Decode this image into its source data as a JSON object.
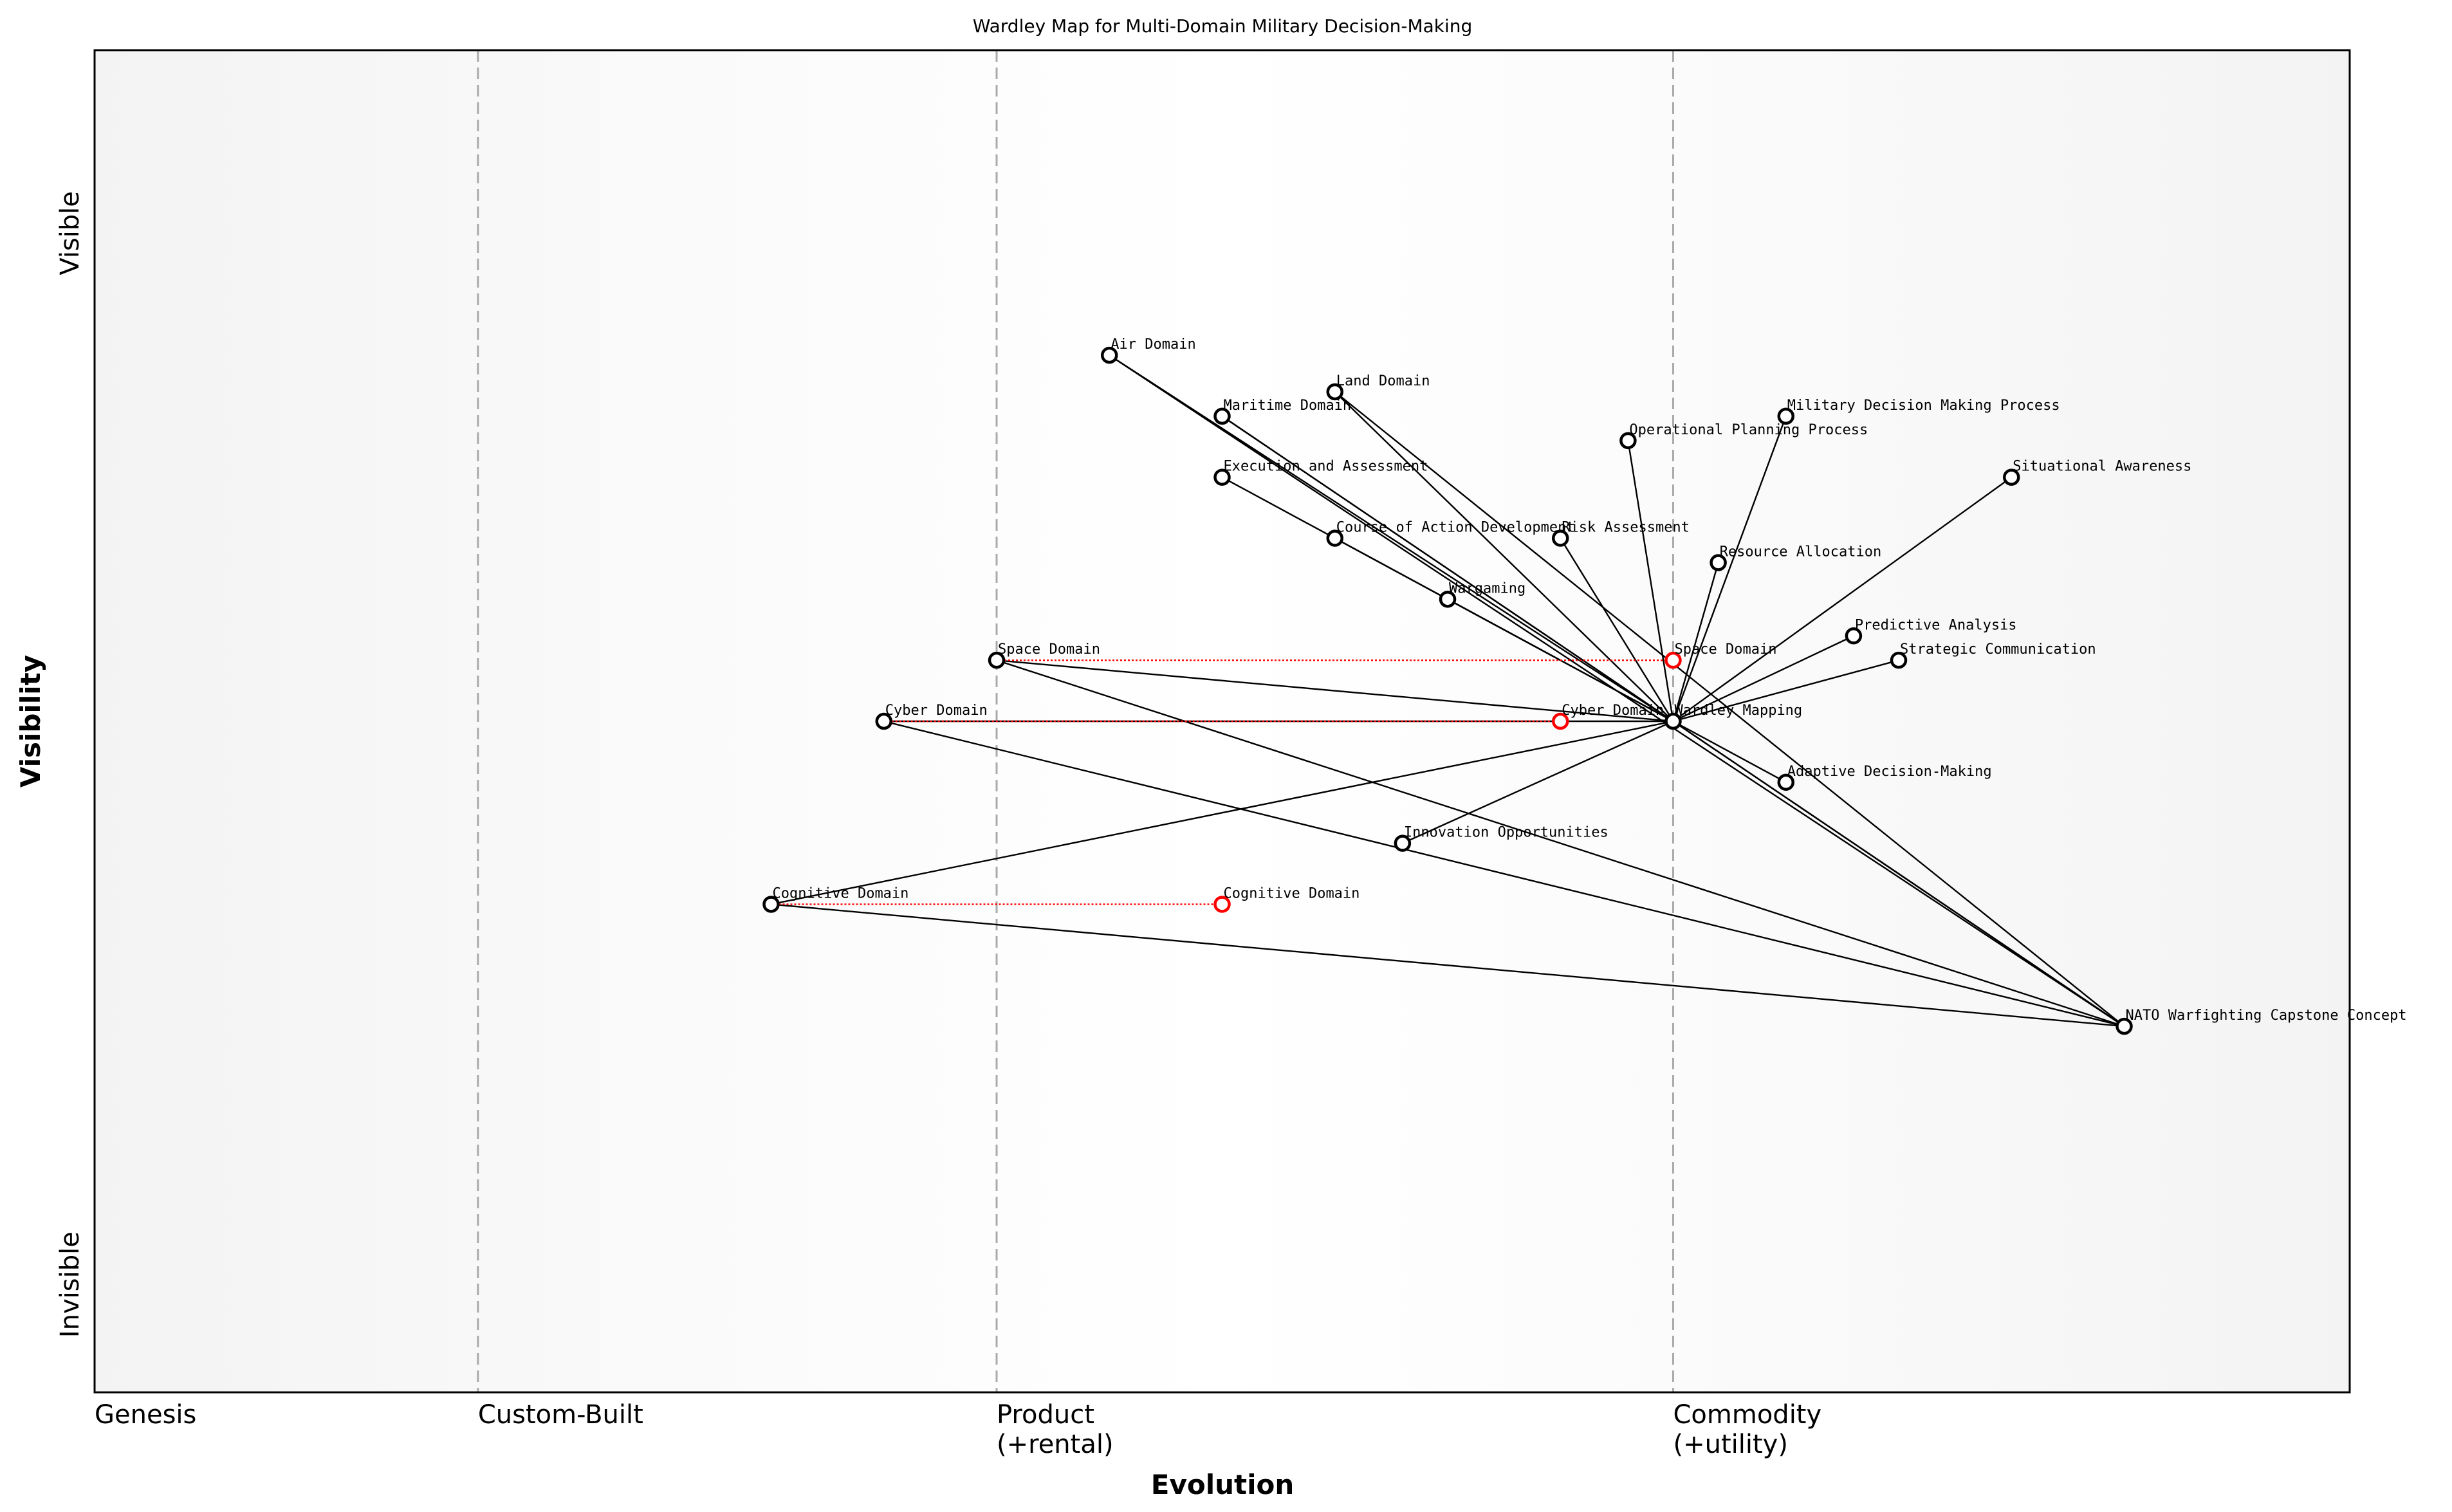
{
  "chart_data": {
    "type": "wardley-map",
    "title": "Wardley Map for Multi-Domain Military Decision-Making",
    "xlabel": "Evolution",
    "ylabel": "Visibility",
    "xlim": [
      0,
      1
    ],
    "ylim": [
      -0.05,
      1.05
    ],
    "x_stages": [
      {
        "label": "Genesis",
        "x": 0.0
      },
      {
        "label": "Custom-Built",
        "x": 0.17
      },
      {
        "label": "Product\n(+rental)",
        "x": 0.4
      },
      {
        "label": "Commodity\n(+utility)",
        "x": 0.7
      }
    ],
    "y_ticks": [
      {
        "label": "Invisible",
        "y": 0.0
      },
      {
        "label": "Visible",
        "y": 0.9
      }
    ],
    "colors": {
      "node": "#000000",
      "evolved": "#ff0000",
      "link": "#000000",
      "stage_line": "#aaaaaa"
    },
    "components": [
      {
        "id": "air",
        "name": "Air Domain",
        "x": 0.45,
        "y": 0.8
      },
      {
        "id": "land",
        "name": "Land Domain",
        "x": 0.55,
        "y": 0.77
      },
      {
        "id": "maritime",
        "name": "Maritime Domain",
        "x": 0.5,
        "y": 0.75
      },
      {
        "id": "mdmp",
        "name": "Military Decision Making Process",
        "x": 0.75,
        "y": 0.75
      },
      {
        "id": "opp",
        "name": "Operational Planning Process",
        "x": 0.68,
        "y": 0.73
      },
      {
        "id": "exec",
        "name": "Execution and Assessment",
        "x": 0.5,
        "y": 0.7
      },
      {
        "id": "sa",
        "name": "Situational Awareness",
        "x": 0.85,
        "y": 0.7
      },
      {
        "id": "coa",
        "name": "Course of Action Development",
        "x": 0.55,
        "y": 0.65
      },
      {
        "id": "risk",
        "name": "Risk Assessment",
        "x": 0.65,
        "y": 0.65
      },
      {
        "id": "res",
        "name": "Resource Allocation",
        "x": 0.72,
        "y": 0.63
      },
      {
        "id": "war",
        "name": "Wargaming",
        "x": 0.6,
        "y": 0.6
      },
      {
        "id": "pred",
        "name": "Predictive Analysis",
        "x": 0.78,
        "y": 0.57
      },
      {
        "id": "space",
        "name": "Space Domain",
        "x": 0.4,
        "y": 0.55
      },
      {
        "id": "strat",
        "name": "Strategic Communication",
        "x": 0.8,
        "y": 0.55
      },
      {
        "id": "cyber",
        "name": "Cyber Domain",
        "x": 0.35,
        "y": 0.5
      },
      {
        "id": "wm",
        "name": "Wardley Mapping",
        "x": 0.7,
        "y": 0.5
      },
      {
        "id": "adm",
        "name": "Adaptive Decision-Making",
        "x": 0.75,
        "y": 0.45
      },
      {
        "id": "innov",
        "name": "Innovation Opportunities",
        "x": 0.58,
        "y": 0.4
      },
      {
        "id": "cog",
        "name": "Cognitive Domain",
        "x": 0.3,
        "y": 0.35
      },
      {
        "id": "nato",
        "name": "NATO Warfighting Capstone Concept",
        "x": 0.9,
        "y": 0.25
      }
    ],
    "evolutions": [
      {
        "from": "space",
        "name": "Space Domain",
        "x": 0.7,
        "y": 0.55
      },
      {
        "from": "cyber",
        "name": "Cyber Domain",
        "x": 0.65,
        "y": 0.5
      },
      {
        "from": "cog",
        "name": "Cognitive Domain",
        "x": 0.5,
        "y": 0.35
      }
    ],
    "links": [
      [
        "wm",
        "air"
      ],
      [
        "wm",
        "land"
      ],
      [
        "wm",
        "maritime"
      ],
      [
        "wm",
        "mdmp"
      ],
      [
        "wm",
        "opp"
      ],
      [
        "wm",
        "exec"
      ],
      [
        "wm",
        "sa"
      ],
      [
        "wm",
        "coa"
      ],
      [
        "wm",
        "risk"
      ],
      [
        "wm",
        "res"
      ],
      [
        "wm",
        "war"
      ],
      [
        "wm",
        "pred"
      ],
      [
        "wm",
        "space"
      ],
      [
        "wm",
        "strat"
      ],
      [
        "wm",
        "cyber"
      ],
      [
        "wm",
        "adm"
      ],
      [
        "wm",
        "innov"
      ],
      [
        "wm",
        "cog"
      ],
      [
        "nato",
        "wm"
      ],
      [
        "nato",
        "air"
      ],
      [
        "nato",
        "land"
      ],
      [
        "nato",
        "maritime"
      ],
      [
        "nato",
        "space"
      ],
      [
        "nato",
        "cyber"
      ],
      [
        "nato",
        "cog"
      ]
    ]
  }
}
